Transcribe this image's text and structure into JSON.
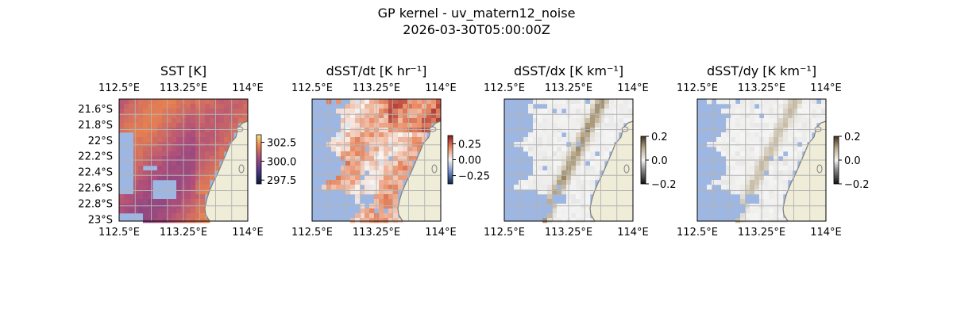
{
  "figure": {
    "title": "GP kernel - uv_matern12_noise",
    "subtitle": "2026-03-30T05:00:00Z"
  },
  "colors": {
    "land": "#efedd8",
    "nodata": "#9db7e2",
    "coast": "#7f7f7f",
    "grid": "#b3b3b3"
  },
  "chart_data": [
    {
      "type": "heatmap",
      "title": "SST [K]",
      "xticks": [
        "112.5°E",
        "113.25°E",
        "114°E"
      ],
      "yticks": [
        "21.6°S",
        "21.8°S",
        "22°S",
        "22.2°S",
        "22.4°S",
        "22.6°S",
        "22.8°S",
        "23°S"
      ],
      "colorbar": {
        "ticks": [
          "302.5",
          "300.0",
          "297.5"
        ],
        "range": [
          297,
          303.5
        ]
      },
      "colormap": "thermal",
      "grid": true
    },
    {
      "type": "heatmap",
      "title": "dSST/dt [K hr⁻¹]",
      "xticks": [
        "112.5°E",
        "113.25°E",
        "114°E"
      ],
      "colorbar": {
        "ticks": [
          "0.25",
          "0.00",
          "−0.25"
        ],
        "range": [
          -0.38,
          0.38
        ]
      },
      "colormap": "diverging",
      "grid": true
    },
    {
      "type": "heatmap",
      "title": "dSST/dx [K km⁻¹]",
      "xticks": [
        "112.5°E",
        "113.25°E",
        "114°E"
      ],
      "colorbar": {
        "ticks": [
          "0.2",
          "0.0",
          "−0.2"
        ],
        "range": [
          -0.2,
          0.2
        ]
      },
      "colormap": "balance-gray",
      "grid": true
    },
    {
      "type": "heatmap",
      "title": "dSST/dy [K km⁻¹]",
      "xticks": [
        "112.5°E",
        "113.25°E",
        "114°E"
      ],
      "colorbar": {
        "ticks": [
          "0.2",
          "0.0",
          "−0.2"
        ],
        "range": [
          -0.2,
          0.2
        ]
      },
      "colormap": "balance-gray",
      "grid": true
    }
  ]
}
